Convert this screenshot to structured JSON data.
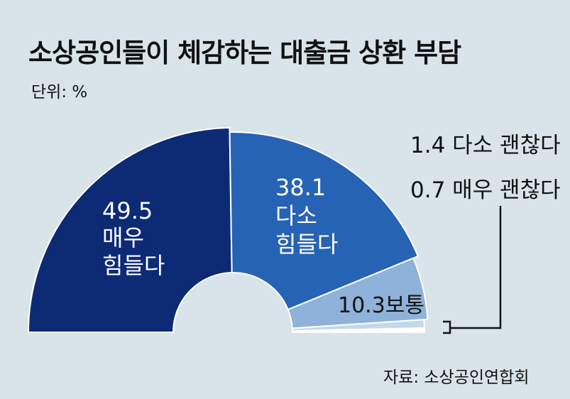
{
  "title": "소상공인들이 체감하는 대출금 상환 부담",
  "unit": "단위: %",
  "source": "자료: 소상공인연합회",
  "colors": {
    "background": "#d9e4ea",
    "very_hard": "#0d2a74",
    "somewhat_hard": "#2763b5",
    "normal": "#8eb2d9",
    "somewhat_ok": "#c4d8ec",
    "very_ok": "#ffffff"
  },
  "chart_data": {
    "type": "pie",
    "variant": "half-donut",
    "title": "소상공인들이 체감하는 대출금 상환 부담",
    "unit": "%",
    "categories": [
      "매우 힘들다",
      "다소 힘들다",
      "보통",
      "다소 괜찮다",
      "매우 괜찮다"
    ],
    "values": [
      49.5,
      38.1,
      10.3,
      1.4,
      0.7
    ],
    "labels": [
      {
        "value": "49.5",
        "lines": [
          "매우",
          "힘들다"
        ]
      },
      {
        "value": "38.1",
        "lines": [
          "다소",
          "힘들다"
        ]
      },
      {
        "value": "10.3",
        "lines": [
          "보통"
        ]
      },
      {
        "value": "1.4",
        "lines": [
          "다소 괜찮다"
        ]
      },
      {
        "value": "0.7",
        "lines": [
          "매우 괜찮다"
        ]
      }
    ]
  }
}
